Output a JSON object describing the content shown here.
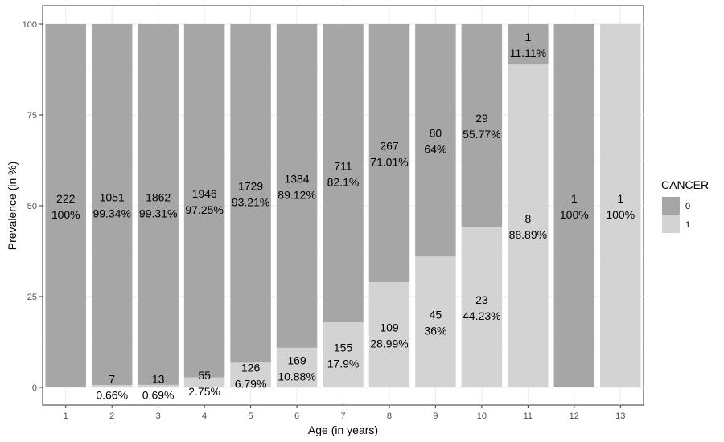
{
  "chart_data": {
    "type": "bar",
    "stacked": true,
    "categories": [
      "1",
      "2",
      "3",
      "4",
      "5",
      "6",
      "7",
      "8",
      "9",
      "10",
      "11",
      "12",
      "13"
    ],
    "xlabel": "Age (in years)",
    "ylabel": "Prevalence (in %)",
    "ylim": [
      0,
      100
    ],
    "yticks": [
      "0",
      "25",
      "50",
      "75",
      "100"
    ],
    "grid": true,
    "legend": {
      "title": "CANCER",
      "position": "right"
    },
    "series": [
      {
        "name": "0",
        "color": "#a6a6a6",
        "values": [
          100,
          99.34,
          99.31,
          97.25,
          93.21,
          89.12,
          82.1,
          71.01,
          64,
          55.77,
          11.11,
          100,
          0
        ],
        "counts": [
          "222",
          "1051",
          "1862",
          "1946",
          "1729",
          "1384",
          "711",
          "267",
          "80",
          "29",
          "1",
          "1",
          ""
        ],
        "labels": [
          "100%",
          "99.34%",
          "99.31%",
          "97.25%",
          "93.21%",
          "89.12%",
          "82.1%",
          "71.01%",
          "64%",
          "55.77%",
          "11.11%",
          "100%",
          ""
        ]
      },
      {
        "name": "1",
        "color": "#d3d3d3",
        "values": [
          0,
          0.66,
          0.69,
          2.75,
          6.79,
          10.88,
          17.9,
          28.99,
          36,
          44.23,
          88.89,
          0,
          100
        ],
        "counts": [
          "",
          "7",
          "13",
          "55",
          "126",
          "169",
          "155",
          "109",
          "45",
          "23",
          "8",
          "",
          "1"
        ],
        "labels": [
          "",
          "0.66%",
          "0.69%",
          "2.75%",
          "6.79%",
          "10.88%",
          "17.9%",
          "28.99%",
          "36%",
          "44.23%",
          "88.89%",
          "",
          "100%"
        ]
      }
    ]
  }
}
